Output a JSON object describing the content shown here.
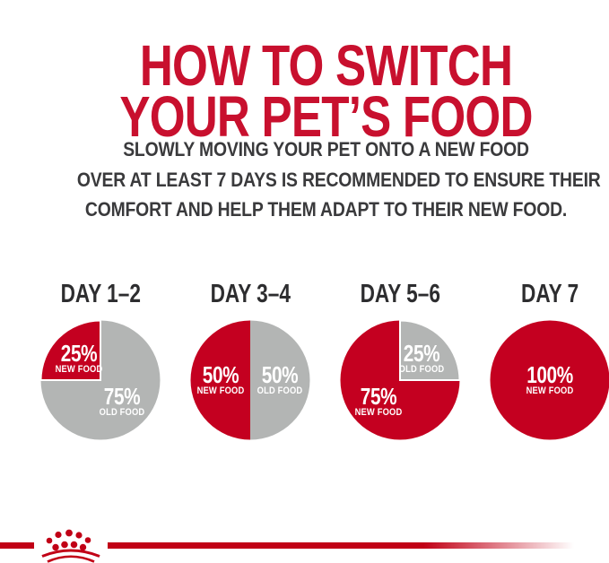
{
  "page": {
    "background": "#ffffff"
  },
  "title": {
    "line1": "HOW TO SWITCH",
    "line2": "YOUR PET’S FOOD",
    "color": "#c8102e"
  },
  "subtitle": {
    "lines": [
      "SLOWLY MOVING YOUR PET ONTO A NEW FOOD",
      "OVER AT LEAST 7 DAYS IS RECOMMENDED TO ENSURE THEIR",
      "COMFORT AND HELP THEM ADAPT TO THEIR NEW FOOD."
    ],
    "color": "#3a3a3c"
  },
  "chart_data": {
    "type": "pie",
    "unit": "%",
    "legend_position": "labels-inside-slices",
    "colors": {
      "new_food": "#c40020",
      "old_food": "#b3b5b4"
    },
    "charts": [
      {
        "day_label": "DAY 1–2",
        "slices": [
          {
            "name": "NEW FOOD",
            "value": 25,
            "value_label": "25%",
            "color": "new_food",
            "start_angle": 270,
            "sweep": 90,
            "separator": true
          },
          {
            "name": "OLD FOOD",
            "value": 75,
            "value_label": "75%",
            "color": "old_food",
            "start_angle": 0,
            "sweep": 270
          }
        ]
      },
      {
        "day_label": "DAY 3–4",
        "slices": [
          {
            "name": "NEW FOOD",
            "value": 50,
            "value_label": "50%",
            "color": "new_food",
            "start_angle": 180,
            "sweep": 180
          },
          {
            "name": "OLD FOOD",
            "value": 50,
            "value_label": "50%",
            "color": "old_food",
            "start_angle": 0,
            "sweep": 180
          }
        ]
      },
      {
        "day_label": "DAY 5–6",
        "slices": [
          {
            "name": "NEW FOOD",
            "value": 75,
            "value_label": "75%",
            "color": "new_food",
            "start_angle": 90,
            "sweep": 270
          },
          {
            "name": "OLD FOOD",
            "value": 25,
            "value_label": "25%",
            "color": "old_food",
            "start_angle": 0,
            "sweep": 90,
            "separator": true
          }
        ]
      },
      {
        "day_label": "DAY 7",
        "slices": [
          {
            "name": "NEW FOOD",
            "value": 100,
            "value_label": "100%",
            "color": "new_food",
            "start_angle": 0,
            "sweep": 360
          }
        ]
      }
    ]
  },
  "footer": {
    "logo_icon": "royal-canin-crown-icon",
    "stripe_color": "#c10016"
  }
}
